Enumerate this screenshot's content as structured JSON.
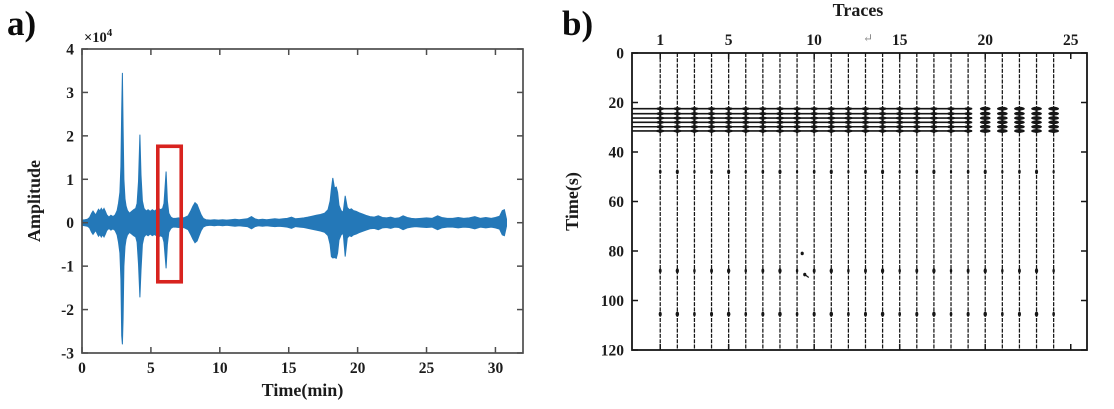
{
  "figure": {
    "panel_a_tag": "a)",
    "panel_b_tag": "b)"
  },
  "colors": {
    "waveform_blue": "#2478b8",
    "highlight_red": "#d8231f",
    "axis_gray": "#4d4d4d",
    "trace_black": "#161616",
    "text_dark": "#1b1b1b"
  },
  "chart_data": [
    {
      "id": "a",
      "type": "line",
      "description": "Seismic amplitude waveform envelope vs time",
      "xlabel": "Time(min)",
      "ylabel": "Amplitude",
      "y_multiplier": {
        "text": "×10",
        "exp": "4"
      },
      "xlim": [
        0,
        32
      ],
      "ylim": [
        -3,
        4
      ],
      "xticks": [
        0,
        5,
        10,
        15,
        20,
        25,
        30
      ],
      "yticks": [
        -3,
        -2,
        -1,
        0,
        1,
        2,
        3,
        4
      ],
      "grid": false,
      "line_color": "#2478b8",
      "highlight_box": {
        "t0": 5.5,
        "t1": 7.2,
        "v0": -1.36,
        "v1": 1.76,
        "color": "#d8231f"
      },
      "major_events": [
        {
          "time_min": 2.93,
          "peak": 3.45,
          "trough": -2.8
        },
        {
          "time_min": 4.2,
          "peak": 2.03,
          "trough": -1.72
        },
        {
          "time_min": 6.1,
          "peak": 1.18,
          "trough": -1.05
        },
        {
          "time_min": 18.2,
          "peak": 1.03,
          "trough": -0.81
        },
        {
          "time_min": 19.1,
          "peak": 0.62,
          "trough": -0.78
        }
      ],
      "envelope": [
        [
          0,
          0.06
        ],
        [
          0.2,
          0.07
        ],
        [
          0.4,
          0.08
        ],
        [
          0.55,
          0.12
        ],
        [
          0.7,
          0.22
        ],
        [
          0.8,
          0.27
        ],
        [
          0.9,
          0.22
        ],
        [
          1.0,
          0.18
        ],
        [
          1.1,
          0.25
        ],
        [
          1.2,
          0.31
        ],
        [
          1.3,
          0.27
        ],
        [
          1.4,
          0.33
        ],
        [
          1.5,
          0.28
        ],
        [
          1.6,
          0.33
        ],
        [
          1.7,
          0.26
        ],
        [
          1.8,
          0.18
        ],
        [
          1.95,
          0.13
        ],
        [
          2.1,
          0.17
        ],
        [
          2.25,
          0.14
        ],
        [
          2.4,
          0.18
        ],
        [
          2.55,
          0.28
        ],
        [
          2.65,
          0.45
        ],
        [
          2.75,
          0.7
        ],
        [
          2.82,
          1.3
        ],
        [
          2.88,
          2.6
        ],
        [
          2.93,
          3.45,
          -2.8
        ],
        [
          2.98,
          2.2
        ],
        [
          3.04,
          1.0
        ],
        [
          3.12,
          0.55
        ],
        [
          3.2,
          0.38
        ],
        [
          3.3,
          0.28
        ],
        [
          3.45,
          0.22
        ],
        [
          3.6,
          0.26
        ],
        [
          3.75,
          0.3
        ],
        [
          3.9,
          0.33
        ],
        [
          4.0,
          0.45
        ],
        [
          4.1,
          0.95
        ],
        [
          4.2,
          2.03,
          -1.72
        ],
        [
          4.28,
          1.1
        ],
        [
          4.38,
          0.5
        ],
        [
          4.5,
          0.33
        ],
        [
          4.65,
          0.27
        ],
        [
          4.8,
          0.3
        ],
        [
          4.95,
          0.26
        ],
        [
          5.1,
          0.3
        ],
        [
          5.25,
          0.27
        ],
        [
          5.4,
          0.3
        ],
        [
          5.55,
          0.33
        ],
        [
          5.7,
          0.3
        ],
        [
          5.85,
          0.33
        ],
        [
          5.95,
          0.45
        ],
        [
          6.1,
          1.18,
          -1.05
        ],
        [
          6.2,
          0.5
        ],
        [
          6.3,
          0.22
        ],
        [
          6.45,
          0.13
        ],
        [
          6.6,
          0.1
        ],
        [
          6.8,
          0.1
        ],
        [
          7.0,
          0.11
        ],
        [
          7.2,
          0.1
        ],
        [
          7.45,
          0.12
        ],
        [
          7.7,
          0.16
        ],
        [
          7.9,
          0.28
        ],
        [
          8.05,
          0.38
        ],
        [
          8.2,
          0.46
        ],
        [
          8.35,
          0.42
        ],
        [
          8.5,
          0.3
        ],
        [
          8.65,
          0.18
        ],
        [
          8.8,
          0.1
        ],
        [
          9.0,
          0.07
        ],
        [
          9.3,
          0.06
        ],
        [
          9.6,
          0.07
        ],
        [
          9.9,
          0.06
        ],
        [
          10.2,
          0.07
        ],
        [
          10.5,
          0.06
        ],
        [
          10.8,
          0.07
        ],
        [
          11.1,
          0.08
        ],
        [
          11.4,
          0.07
        ],
        [
          11.7,
          0.08
        ],
        [
          12.0,
          0.09
        ],
        [
          12.3,
          0.14
        ],
        [
          12.55,
          0.09
        ],
        [
          12.8,
          0.07
        ],
        [
          13.1,
          0.08
        ],
        [
          13.4,
          0.07
        ],
        [
          13.7,
          0.08
        ],
        [
          14.0,
          0.09
        ],
        [
          14.3,
          0.08
        ],
        [
          14.6,
          0.09
        ],
        [
          14.9,
          0.1
        ],
        [
          15.2,
          0.13
        ],
        [
          15.5,
          0.09
        ],
        [
          15.8,
          0.1
        ],
        [
          16.1,
          0.11
        ],
        [
          16.4,
          0.13
        ],
        [
          16.7,
          0.15
        ],
        [
          17.0,
          0.17
        ],
        [
          17.3,
          0.19
        ],
        [
          17.6,
          0.22
        ],
        [
          17.85,
          0.3
        ],
        [
          18.0,
          0.5
        ],
        [
          18.1,
          0.78
        ],
        [
          18.2,
          1.03,
          -0.81
        ],
        [
          18.32,
          0.8
        ],
        [
          18.45,
          0.82
        ],
        [
          18.55,
          0.7
        ],
        [
          18.65,
          0.4
        ],
        [
          18.8,
          0.28
        ],
        [
          18.95,
          0.24
        ],
        [
          19.1,
          0.62,
          -0.78
        ],
        [
          19.25,
          0.35
        ],
        [
          19.4,
          0.3
        ],
        [
          19.55,
          0.32
        ],
        [
          19.7,
          0.28
        ],
        [
          19.9,
          0.26
        ],
        [
          20.1,
          0.23
        ],
        [
          20.35,
          0.2
        ],
        [
          20.6,
          0.17
        ],
        [
          20.9,
          0.14
        ],
        [
          21.2,
          0.13
        ],
        [
          21.5,
          0.16
        ],
        [
          21.8,
          0.12
        ],
        [
          22.1,
          0.11
        ],
        [
          22.4,
          0.13
        ],
        [
          22.7,
          0.1
        ],
        [
          23.0,
          0.11
        ],
        [
          23.3,
          0.16
        ],
        [
          23.6,
          0.12
        ],
        [
          23.9,
          0.1
        ],
        [
          24.2,
          0.09
        ],
        [
          24.6,
          0.1
        ],
        [
          25.0,
          0.11
        ],
        [
          25.4,
          0.1
        ],
        [
          25.8,
          0.16
        ],
        [
          26.1,
          0.12
        ],
        [
          26.5,
          0.1
        ],
        [
          26.9,
          0.1
        ],
        [
          27.3,
          0.12
        ],
        [
          27.7,
          0.1
        ],
        [
          28.1,
          0.11
        ],
        [
          28.5,
          0.14
        ],
        [
          28.9,
          0.1
        ],
        [
          29.3,
          0.12
        ],
        [
          29.7,
          0.1
        ],
        [
          30.0,
          0.12
        ],
        [
          30.3,
          0.15
        ],
        [
          30.5,
          0.28
        ],
        [
          30.65,
          0.3
        ],
        [
          30.8,
          0.08
        ]
      ]
    },
    {
      "id": "b",
      "type": "seismic-trace-gather",
      "title": "Traces",
      "ylabel": "Time(s)",
      "xlim": [
        -0.65,
        25.95
      ],
      "ylim": [
        0,
        120
      ],
      "xticks": [
        1,
        5,
        10,
        15,
        20,
        25
      ],
      "yticks": [
        0,
        20,
        40,
        60,
        80,
        100,
        120
      ],
      "trace_count": 24,
      "band_rows_s": [
        22.5,
        24.5,
        26.3,
        28.0,
        29.8,
        31.5
      ],
      "band_continuous_until_trace": 19,
      "dot_rows_s": [
        48,
        88,
        105.5
      ],
      "extra_marks": [
        {
          "trace": 9.3,
          "time_s": 81,
          "kind": "dot"
        },
        {
          "trace": 9.45,
          "time_s": 89.5,
          "kind": "cursor"
        }
      ],
      "artifact_glyph": "↵"
    }
  ]
}
